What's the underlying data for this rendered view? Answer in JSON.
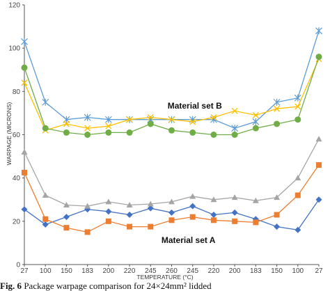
{
  "chart_data": {
    "type": "line",
    "ylabel": "WARPAGE (MICRONS)",
    "xlabel": "TEMPERATURE (°C)",
    "ylim": [
      0,
      120
    ],
    "yticks": [
      0,
      20,
      40,
      60,
      80,
      100,
      120
    ],
    "categories": [
      "27",
      "100",
      "150",
      "183",
      "200",
      "220",
      "245",
      "260",
      "245",
      "220",
      "200",
      "183",
      "150",
      "100",
      "27"
    ],
    "grid": false,
    "annotations": [
      {
        "text": "Material set B",
        "x_index": 8.1,
        "y": 72
      },
      {
        "text": "Material set A",
        "x_index": 7.8,
        "y": 10
      }
    ],
    "series": [
      {
        "color": "#4472c4",
        "marker": "diamond",
        "values": [
          25.5,
          18.5,
          22,
          25.5,
          24.5,
          23,
          26,
          24,
          27,
          23,
          24,
          21,
          17.5,
          16,
          30
        ]
      },
      {
        "color": "#ed7d31",
        "marker": "square",
        "values": [
          42.5,
          21,
          17,
          15,
          20,
          17.5,
          17.5,
          20.5,
          22,
          20.5,
          20,
          19.5,
          23,
          32,
          46
        ]
      },
      {
        "color": "#a5a5a5",
        "marker": "triangle",
        "values": [
          52,
          32,
          27.5,
          27,
          29,
          27.5,
          28,
          29,
          31.5,
          30,
          31,
          29.5,
          31,
          40,
          58
        ]
      },
      {
        "color": "#5b9bd5",
        "marker": "star",
        "values": [
          103,
          75,
          67,
          68,
          67,
          67,
          67,
          67,
          67,
          67,
          63,
          66,
          75,
          77,
          108
        ]
      },
      {
        "color": "#ffc000",
        "marker": "x",
        "values": [
          84,
          62,
          65,
          63,
          64,
          67,
          68,
          67,
          66,
          68,
          71,
          69,
          72,
          73,
          95
        ]
      },
      {
        "color": "#70ad47",
        "marker": "circle",
        "values": [
          91,
          63,
          61,
          60,
          61,
          61,
          65,
          62,
          61,
          60,
          60,
          63,
          65,
          67,
          96
        ]
      }
    ]
  },
  "caption": {
    "label": "Fig. 6",
    "text": "Package warpage comparison for 24×24mm² lidded"
  }
}
